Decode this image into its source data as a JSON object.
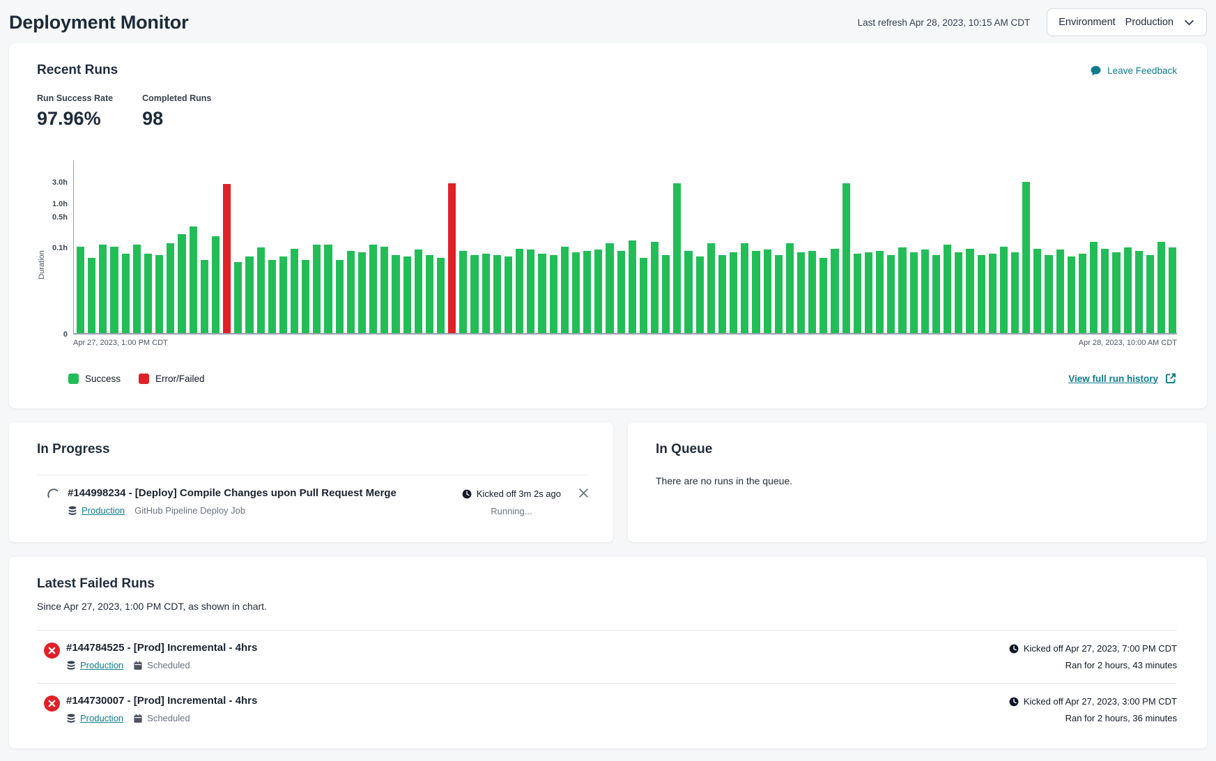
{
  "colors": {
    "success": "#23bd58",
    "error": "#df2128",
    "teal": "#0f7d8c"
  },
  "header": {
    "title": "Deployment Monitor",
    "last_refresh": "Last refresh Apr 28, 2023, 10:15 AM CDT",
    "env_label": "Environment",
    "env_value": "Production"
  },
  "recent_runs": {
    "title": "Recent Runs",
    "feedback_label": "Leave Feedback",
    "stats": [
      {
        "label": "Run Success Rate",
        "value": "97.96%"
      },
      {
        "label": "Completed Runs",
        "value": "98"
      }
    ],
    "view_history_label": "View full run history"
  },
  "chart_data": {
    "type": "bar",
    "title": "Recent run durations",
    "ylabel": "Duration",
    "y_scale": "log",
    "y_ticks": [
      {
        "label": "3.0h",
        "hours": 3.0
      },
      {
        "label": "1.0h",
        "hours": 1.0
      },
      {
        "label": "0.5h",
        "hours": 0.5
      },
      {
        "label": "0.1h",
        "hours": 0.1
      },
      {
        "label": "0",
        "hours": 0
      }
    ],
    "x_start_label": "Apr 27, 2023, 1:00 PM CDT",
    "x_end_label": "Apr 28, 2023, 10:00 AM CDT",
    "legend": [
      {
        "label": "Success",
        "key": "success"
      },
      {
        "label": "Error/Failed",
        "key": "error"
      }
    ],
    "durations_h": [
      0.1,
      0.055,
      0.11,
      0.1,
      0.07,
      0.11,
      0.07,
      0.065,
      0.12,
      0.19,
      0.29,
      0.05,
      0.17,
      2.6,
      0.045,
      0.06,
      0.095,
      0.05,
      0.06,
      0.09,
      0.05,
      0.11,
      0.11,
      0.05,
      0.08,
      0.075,
      0.11,
      0.1,
      0.065,
      0.06,
      0.085,
      0.065,
      0.055,
      2.72,
      0.08,
      0.065,
      0.07,
      0.065,
      0.06,
      0.09,
      0.085,
      0.07,
      0.065,
      0.1,
      0.075,
      0.08,
      0.085,
      0.12,
      0.08,
      0.14,
      0.055,
      0.13,
      0.065,
      2.7,
      0.08,
      0.06,
      0.12,
      0.065,
      0.075,
      0.12,
      0.08,
      0.085,
      0.065,
      0.12,
      0.075,
      0.08,
      0.055,
      0.09,
      2.7,
      0.07,
      0.075,
      0.08,
      0.065,
      0.095,
      0.075,
      0.085,
      0.065,
      0.11,
      0.075,
      0.09,
      0.065,
      0.07,
      0.1,
      0.075,
      2.95,
      0.09,
      0.065,
      0.085,
      0.06,
      0.07,
      0.13,
      0.09,
      0.075,
      0.095,
      0.08,
      0.065,
      0.13,
      0.095
    ],
    "error_indexes": [
      13,
      33
    ]
  },
  "in_progress": {
    "title": "In Progress",
    "run": {
      "name": "#144998234 - [Deploy] Compile Changes upon Pull Request Merge",
      "env": "Production",
      "job": "GitHub Pipeline Deploy Job",
      "kicked_off": "Kicked off 3m 2s ago",
      "status": "Running..."
    }
  },
  "in_queue": {
    "title": "In Queue",
    "empty_message": "There are no runs in the queue."
  },
  "failed_runs": {
    "title": "Latest Failed Runs",
    "subtitle": "Since Apr 27, 2023, 1:00 PM CDT, as shown in chart.",
    "runs": [
      {
        "name": "#144784525 - [Prod] Incremental - 4hrs",
        "env": "Production",
        "schedule": "Scheduled",
        "kicked_off": "Kicked off Apr 27, 2023, 7:00 PM CDT",
        "ran_for": "Ran for 2 hours, 43 minutes"
      },
      {
        "name": "#144730007 - [Prod] Incremental - 4hrs",
        "env": "Production",
        "schedule": "Scheduled",
        "kicked_off": "Kicked off Apr 27, 2023, 3:00 PM CDT",
        "ran_for": "Ran for 2 hours, 36 minutes"
      }
    ]
  }
}
